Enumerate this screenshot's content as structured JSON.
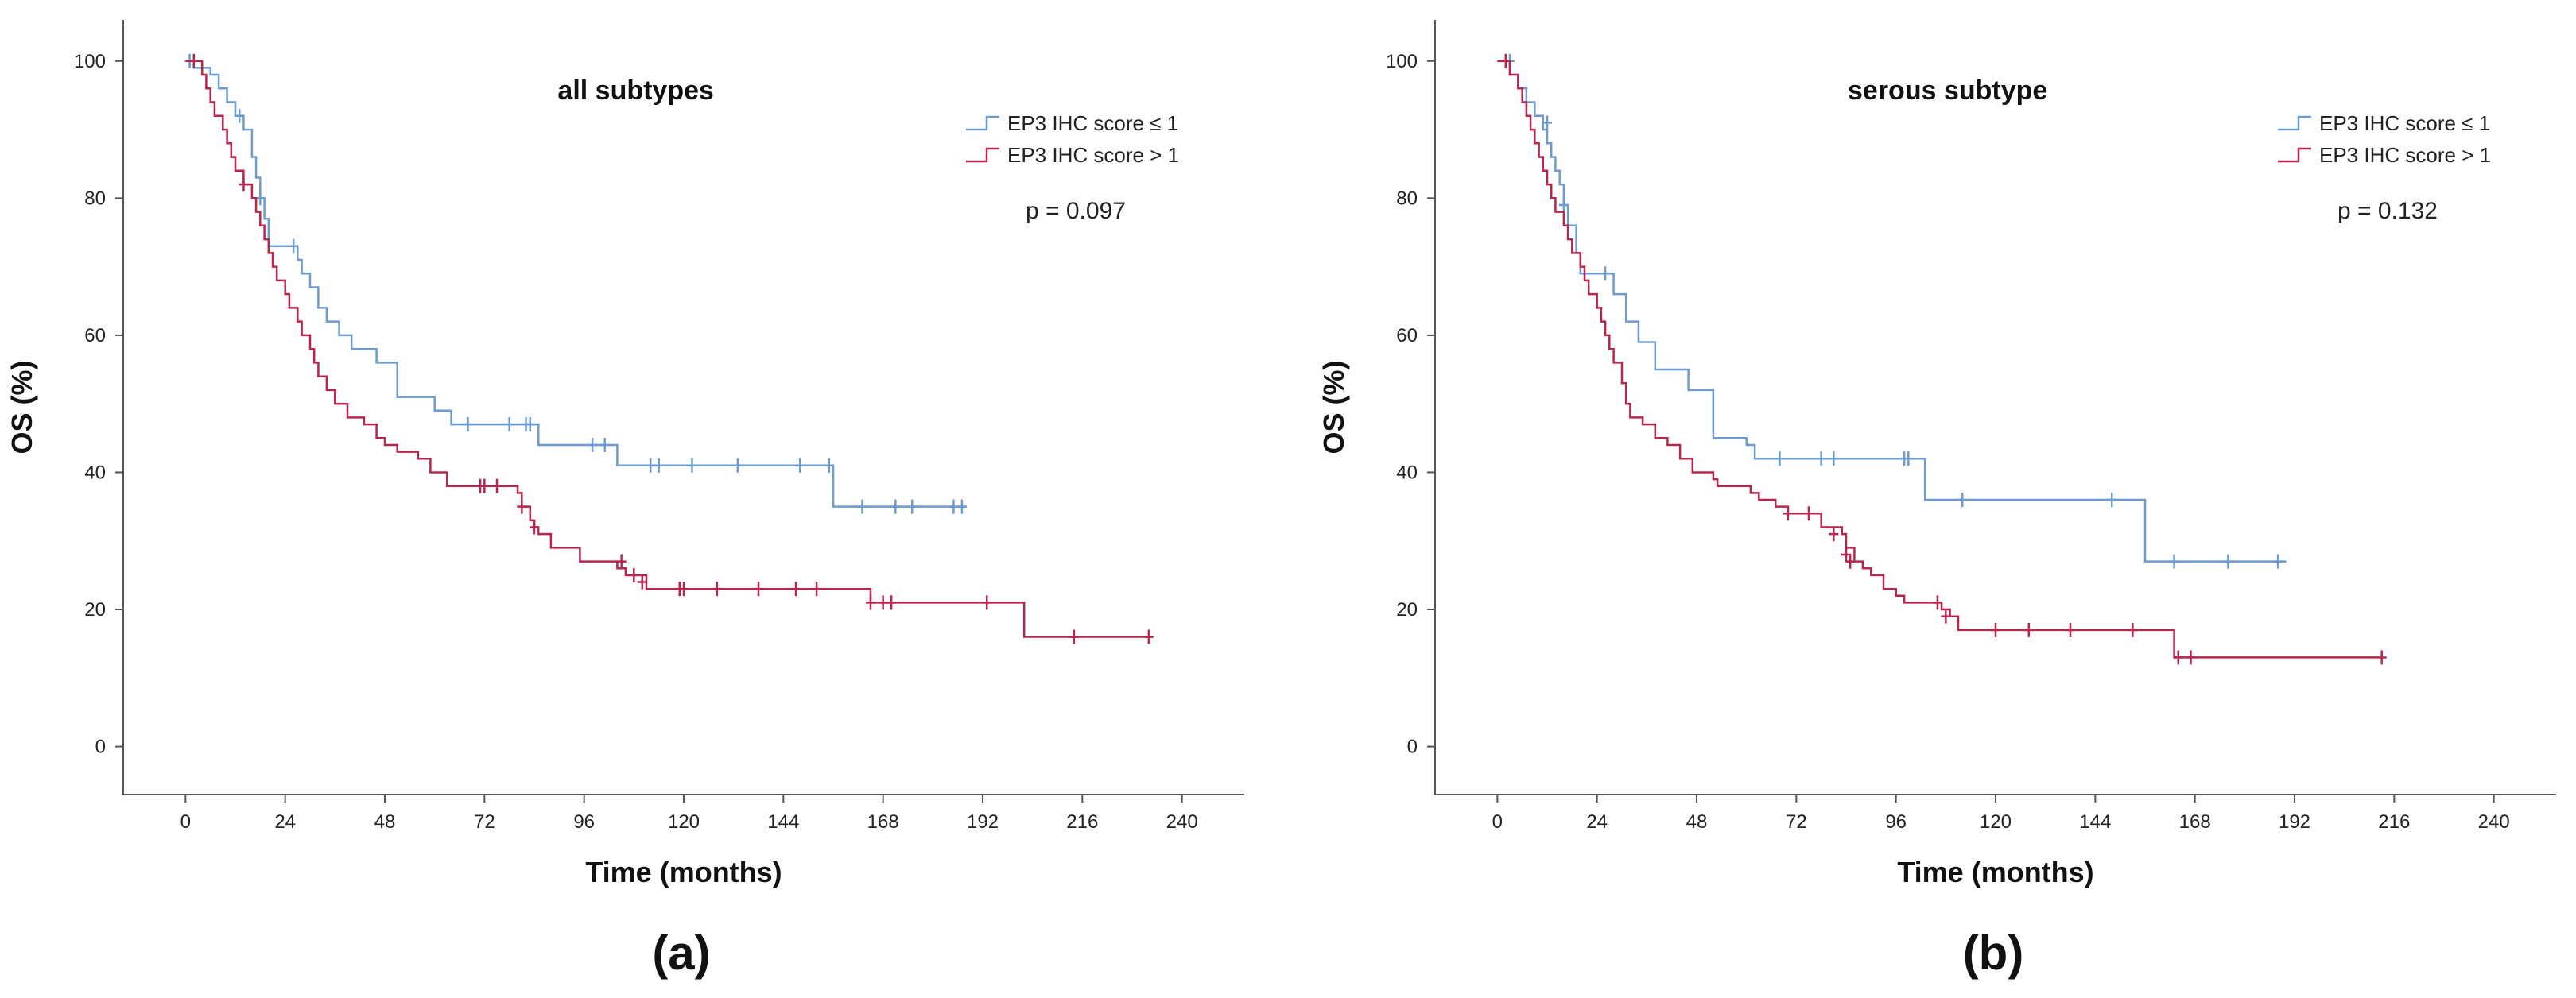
{
  "colors": {
    "low": "#6b9bd1",
    "high": "#b8264c",
    "axis": "#555555"
  },
  "chart_data": [
    {
      "type": "line",
      "subtype": "kaplan-meier",
      "panel_label": "(a)",
      "title": "all subtypes",
      "xlabel": "Time (months)",
      "ylabel": "OS (%)",
      "xlim": [
        -15,
        255
      ],
      "ylim": [
        -7,
        106
      ],
      "xticks": [
        0,
        24,
        48,
        72,
        96,
        120,
        144,
        168,
        192,
        216,
        240
      ],
      "yticks": [
        0,
        20,
        40,
        60,
        80,
        100
      ],
      "p_value": "p = 0.097",
      "series": [
        {
          "name": "EP3 IHC score ≤ 1",
          "color_key": "low",
          "steps": [
            [
              0,
              100
            ],
            [
              2,
              99
            ],
            [
              6,
              98
            ],
            [
              8,
              96
            ],
            [
              10,
              94
            ],
            [
              12,
              92
            ],
            [
              14,
              90
            ],
            [
              16,
              86
            ],
            [
              17,
              83
            ],
            [
              18,
              80
            ],
            [
              19,
              77
            ],
            [
              20,
              73
            ],
            [
              26,
              73
            ],
            [
              27,
              71
            ],
            [
              28,
              69
            ],
            [
              30,
              67
            ],
            [
              32,
              64
            ],
            [
              34,
              62
            ],
            [
              37,
              60
            ],
            [
              40,
              58
            ],
            [
              46,
              56
            ],
            [
              51,
              51
            ],
            [
              60,
              49
            ],
            [
              64,
              47
            ],
            [
              84,
              47
            ],
            [
              85,
              44
            ],
            [
              102,
              44
            ],
            [
              104,
              41
            ],
            [
              155,
              41
            ],
            [
              156,
              35
            ],
            [
              188,
              35
            ]
          ],
          "censor": [
            [
              1,
              100
            ],
            [
              13,
              92
            ],
            [
              18,
              80
            ],
            [
              26,
              73
            ],
            [
              68,
              47
            ],
            [
              78,
              47
            ],
            [
              82,
              47
            ],
            [
              83,
              47
            ],
            [
              98,
              44
            ],
            [
              101,
              44
            ],
            [
              112,
              41
            ],
            [
              114,
              41
            ],
            [
              122,
              41
            ],
            [
              133,
              41
            ],
            [
              148,
              41
            ],
            [
              155,
              41
            ],
            [
              163,
              35
            ],
            [
              171,
              35
            ],
            [
              175,
              35
            ],
            [
              185,
              35
            ],
            [
              187,
              35
            ]
          ]
        },
        {
          "name": "EP3 IHC score > 1",
          "color_key": "high",
          "steps": [
            [
              0,
              100
            ],
            [
              4,
              98
            ],
            [
              5,
              96
            ],
            [
              6,
              94
            ],
            [
              7,
              92
            ],
            [
              9,
              90
            ],
            [
              10,
              88
            ],
            [
              11,
              86
            ],
            [
              12,
              84
            ],
            [
              14,
              82
            ],
            [
              16,
              80
            ],
            [
              17,
              78
            ],
            [
              18,
              76
            ],
            [
              19,
              74
            ],
            [
              20,
              72
            ],
            [
              21,
              70
            ],
            [
              22,
              68
            ],
            [
              24,
              66
            ],
            [
              25,
              64
            ],
            [
              27,
              62
            ],
            [
              28,
              60
            ],
            [
              30,
              58
            ],
            [
              31,
              56
            ],
            [
              32,
              54
            ],
            [
              34,
              52
            ],
            [
              36,
              50
            ],
            [
              39,
              48
            ],
            [
              43,
              47
            ],
            [
              46,
              45
            ],
            [
              48,
              44
            ],
            [
              51,
              43
            ],
            [
              56,
              42
            ],
            [
              59,
              40
            ],
            [
              63,
              38
            ],
            [
              80,
              37
            ],
            [
              81,
              35
            ],
            [
              83,
              33
            ],
            [
              84,
              32
            ],
            [
              85,
              31
            ],
            [
              88,
              29
            ],
            [
              95,
              27
            ],
            [
              104,
              26
            ],
            [
              106,
              25
            ],
            [
              111,
              23
            ],
            [
              164,
              23
            ],
            [
              165,
              21
            ],
            [
              201,
              21
            ],
            [
              202,
              16
            ],
            [
              233,
              16
            ]
          ],
          "censor": [
            [
              2,
              100
            ],
            [
              14,
              82
            ],
            [
              71,
              38
            ],
            [
              72,
              38
            ],
            [
              75,
              38
            ],
            [
              81,
              35
            ],
            [
              84,
              32
            ],
            [
              105,
              27
            ],
            [
              108,
              25
            ],
            [
              110,
              24
            ],
            [
              119,
              23
            ],
            [
              120,
              23
            ],
            [
              128,
              23
            ],
            [
              138,
              23
            ],
            [
              147,
              23
            ],
            [
              152,
              23
            ],
            [
              165,
              21
            ],
            [
              168,
              21
            ],
            [
              170,
              21
            ],
            [
              193,
              21
            ],
            [
              214,
              16
            ],
            [
              232,
              16
            ]
          ]
        }
      ]
    },
    {
      "type": "line",
      "subtype": "kaplan-meier",
      "panel_label": "(b)",
      "title": "serous subtype",
      "xlabel": "Time (months)",
      "ylabel": "OS (%)",
      "xlim": [
        -15,
        255
      ],
      "ylim": [
        -7,
        106
      ],
      "xticks": [
        0,
        24,
        48,
        72,
        96,
        120,
        144,
        168,
        192,
        216,
        240
      ],
      "yticks": [
        0,
        20,
        40,
        60,
        80,
        100
      ],
      "p_value": "p = 0.132",
      "series": [
        {
          "name": "EP3 IHC score ≤ 1",
          "color_key": "low",
          "steps": [
            [
              0,
              100
            ],
            [
              3,
              98
            ],
            [
              5,
              96
            ],
            [
              7,
              94
            ],
            [
              9,
              92
            ],
            [
              11,
              90
            ],
            [
              12,
              88
            ],
            [
              13,
              86
            ],
            [
              14,
              84
            ],
            [
              15,
              82
            ],
            [
              16,
              79
            ],
            [
              17,
              76
            ],
            [
              19,
              72
            ],
            [
              20,
              69
            ],
            [
              27,
              69
            ],
            [
              28,
              66
            ],
            [
              31,
              62
            ],
            [
              34,
              59
            ],
            [
              38,
              55
            ],
            [
              46,
              52
            ],
            [
              52,
              45
            ],
            [
              60,
              44
            ],
            [
              62,
              42
            ],
            [
              102,
              42
            ],
            [
              103,
              36
            ],
            [
              155,
              36
            ],
            [
              156,
              27
            ],
            [
              190,
              27
            ]
          ],
          "censor": [
            [
              3,
              100
            ],
            [
              12,
              91
            ],
            [
              16,
              79
            ],
            [
              26,
              69
            ],
            [
              68,
              42
            ],
            [
              78,
              42
            ],
            [
              81,
              42
            ],
            [
              98,
              42
            ],
            [
              99,
              42
            ],
            [
              112,
              36
            ],
            [
              148,
              36
            ],
            [
              163,
              27
            ],
            [
              176,
              27
            ],
            [
              188,
              27
            ]
          ]
        },
        {
          "name": "EP3 IHC score > 1",
          "color_key": "high",
          "steps": [
            [
              0,
              100
            ],
            [
              3,
              98
            ],
            [
              5,
              96
            ],
            [
              6,
              94
            ],
            [
              7,
              92
            ],
            [
              8,
              90
            ],
            [
              9,
              88
            ],
            [
              10,
              86
            ],
            [
              11,
              84
            ],
            [
              12,
              82
            ],
            [
              13,
              80
            ],
            [
              14,
              78
            ],
            [
              16,
              76
            ],
            [
              17,
              74
            ],
            [
              18,
              72
            ],
            [
              20,
              70
            ],
            [
              21,
              68
            ],
            [
              22,
              66
            ],
            [
              24,
              64
            ],
            [
              25,
              62
            ],
            [
              26,
              60
            ],
            [
              27,
              58
            ],
            [
              28,
              56
            ],
            [
              30,
              53
            ],
            [
              31,
              50
            ],
            [
              32,
              48
            ],
            [
              35,
              47
            ],
            [
              38,
              45
            ],
            [
              41,
              44
            ],
            [
              44,
              42
            ],
            [
              47,
              40
            ],
            [
              52,
              39
            ],
            [
              53,
              38
            ],
            [
              61,
              37
            ],
            [
              63,
              36
            ],
            [
              67,
              35
            ],
            [
              70,
              34
            ],
            [
              78,
              32
            ],
            [
              83,
              31
            ],
            [
              84,
              29
            ],
            [
              86,
              27
            ],
            [
              88,
              26
            ],
            [
              90,
              25
            ],
            [
              93,
              23
            ],
            [
              96,
              22
            ],
            [
              98,
              21
            ],
            [
              107,
              20
            ],
            [
              109,
              19
            ],
            [
              111,
              17
            ],
            [
              162,
              17
            ],
            [
              163,
              13
            ],
            [
              212,
              13
            ]
          ],
          "censor": [
            [
              2,
              100
            ],
            [
              70,
              34
            ],
            [
              75,
              34
            ],
            [
              81,
              31
            ],
            [
              84,
              28
            ],
            [
              85,
              27
            ],
            [
              106,
              21
            ],
            [
              108,
              19
            ],
            [
              120,
              17
            ],
            [
              128,
              17
            ],
            [
              138,
              17
            ],
            [
              153,
              17
            ],
            [
              164,
              13
            ],
            [
              167,
              13
            ],
            [
              213,
              13
            ]
          ]
        }
      ]
    }
  ]
}
